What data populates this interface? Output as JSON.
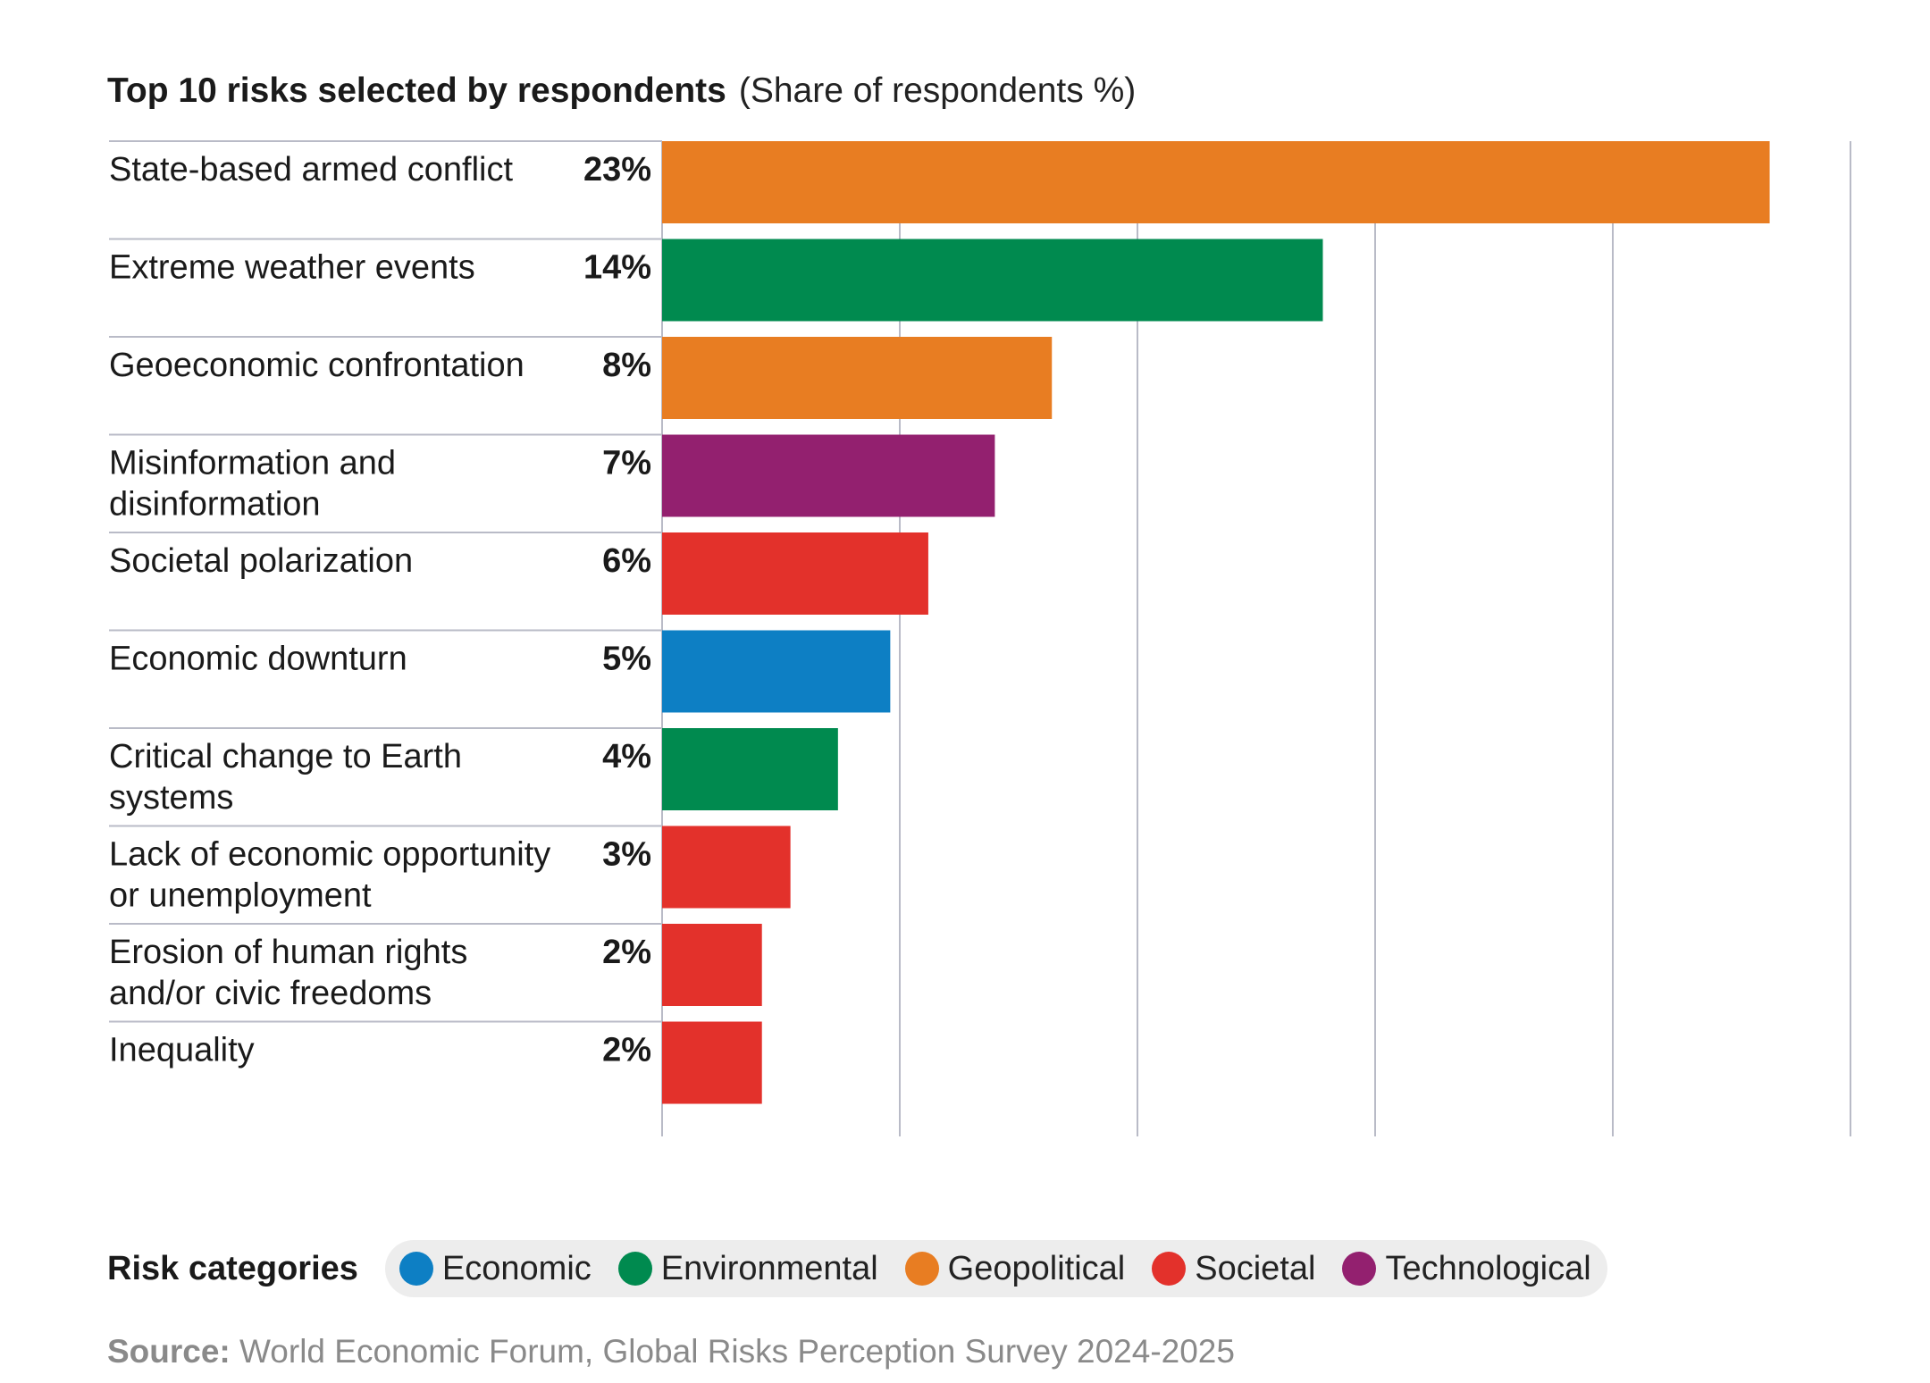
{
  "chart_data": {
    "type": "bar",
    "orientation": "horizontal",
    "title": "Top 10 risks selected by respondents",
    "subtitle": "(Share of respondents %)",
    "xlim": [
      0,
      25
    ],
    "grid": true,
    "categories": [
      [
        "State-based armed conflict"
      ],
      [
        "Extreme weather events"
      ],
      [
        "Geoeconomic confrontation"
      ],
      [
        "Misinformation and",
        "disinformation"
      ],
      [
        "Societal polarization"
      ],
      [
        "Economic downturn"
      ],
      [
        "Critical change to Earth",
        "systems"
      ],
      [
        "Lack of economic opportunity",
        "or unemployment"
      ],
      [
        "Erosion of human rights",
        "and/or civic freedoms"
      ],
      [
        "Inequality"
      ]
    ],
    "values": [
      23.3,
      13.9,
      8.2,
      7.0,
      5.6,
      4.8,
      3.7,
      2.7,
      2.1,
      2.1
    ],
    "value_labels": [
      "23%",
      "14%",
      "8%",
      "7%",
      "6%",
      "5%",
      "4%",
      "3%",
      "2%",
      "2%"
    ],
    "bar_categories": [
      "Geopolitical",
      "Environmental",
      "Geopolitical",
      "Technological",
      "Societal",
      "Economic",
      "Environmental",
      "Societal",
      "Societal",
      "Societal"
    ]
  },
  "legend": {
    "title": "Risk categories",
    "items": [
      {
        "name": "Economic",
        "color": "#0d7fc4"
      },
      {
        "name": "Environmental",
        "color": "#008a4f"
      },
      {
        "name": "Geopolitical",
        "color": "#e87d22"
      },
      {
        "name": "Societal",
        "color": "#e3312b"
      },
      {
        "name": "Technological",
        "color": "#93206f"
      }
    ]
  },
  "source": {
    "label": "Source:",
    "text": "World Economic Forum, Global Risks Perception Survey 2024-2025"
  }
}
